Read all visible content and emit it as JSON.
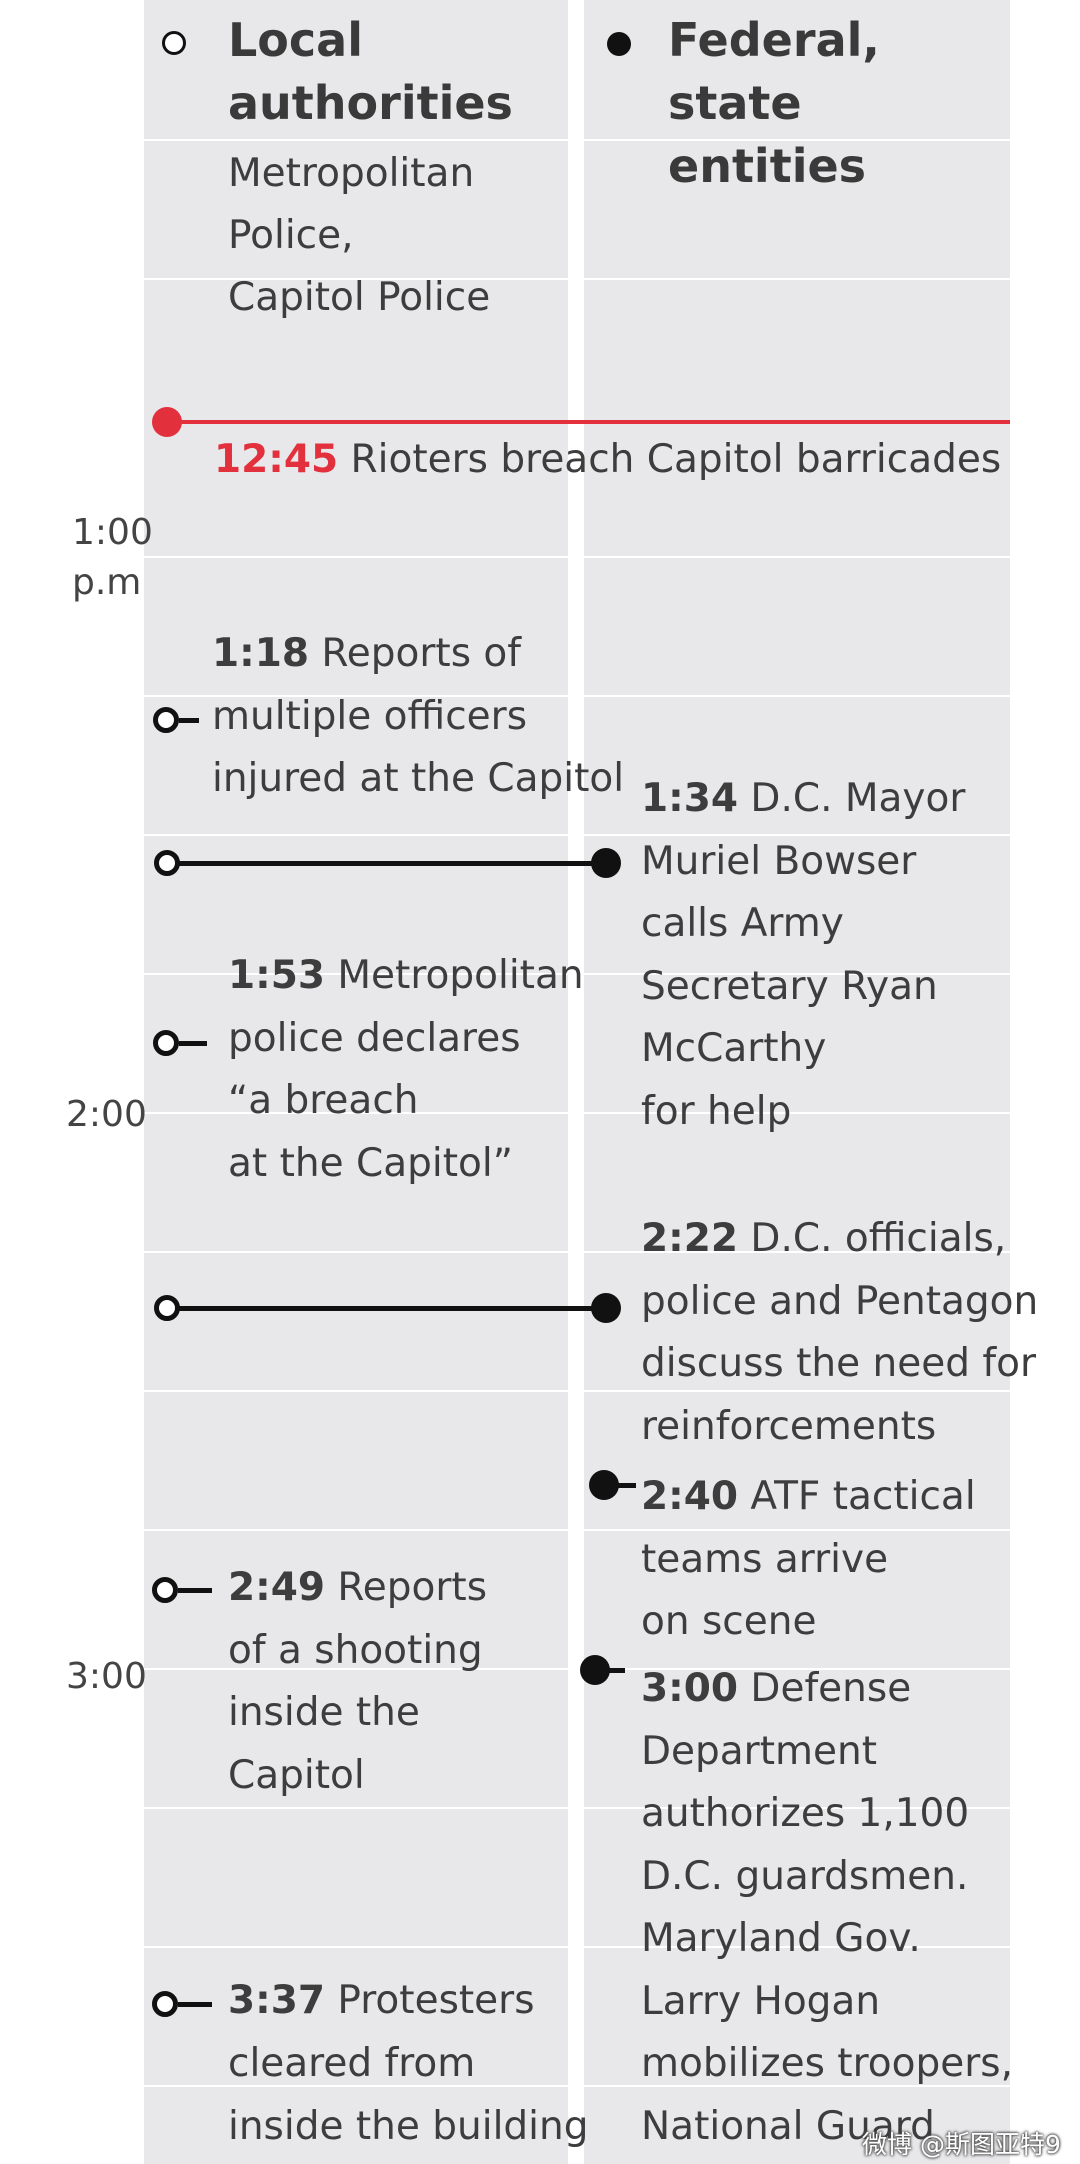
{
  "header": {
    "local": {
      "title_line1": "Local",
      "title_line2": "authorities",
      "sub_line1": "Metropolitan",
      "sub_line2": "Police,",
      "sub_line3": "Capitol Police"
    },
    "federal": {
      "title_line1": "Federal,",
      "title_line2": "state",
      "title_line3": "entities"
    }
  },
  "axis": {
    "t1": "1:00",
    "t1b": "p.m",
    "t2": "2:00",
    "t3": "3:00"
  },
  "events": {
    "e1245": {
      "time": "12:45",
      "text": " Rioters breach Capitol barricades"
    },
    "e118": {
      "time": "1:18",
      "l1": " Reports of",
      "l2": "multiple officers",
      "l3": "injured at the Capitol"
    },
    "e134": {
      "time": "1:34",
      "l1": " D.C. Mayor",
      "l2": "Muriel Bowser",
      "l3": "calls Army",
      "l4": "Secretary Ryan",
      "l5": "McCarthy",
      "l6": "for help"
    },
    "e153": {
      "time": "1:53",
      "l1": "  Metropolitan",
      "l2": "police declares",
      "l3": "“a breach",
      "l4": "at the Capitol”"
    },
    "e222": {
      "time": "2:22",
      "l1": " D.C. officials,",
      "l2": "police and Pentagon",
      "l3": "discuss the need for",
      "l4": "reinforcements"
    },
    "e240": {
      "time": "2:40",
      "l1": " ATF tactical",
      "l2": "teams arrive",
      "l3": "on scene"
    },
    "e249": {
      "time": "2:49",
      "l1": " Reports",
      "l2": "of a shooting",
      "l3": "inside the",
      "l4": "Capitol"
    },
    "e300": {
      "time": "3:00",
      "l1": " Defense",
      "l2": "Department",
      "l3": "authorizes 1,100",
      "l4": "D.C. guardsmen.",
      "l5": "Maryland Gov.",
      "l6": "Larry Hogan",
      "l7": "mobilizes troopers,",
      "l8": "National Guard"
    },
    "e337": {
      "time": "3:37",
      "l1": " Protesters",
      "l2": "cleared from",
      "l3": "inside the building"
    }
  },
  "watermark": "微博 @斯图亚特9",
  "colors": {
    "accent_red": "#e2303d",
    "column_bg": "#e8e8ea",
    "ink": "#111111"
  }
}
